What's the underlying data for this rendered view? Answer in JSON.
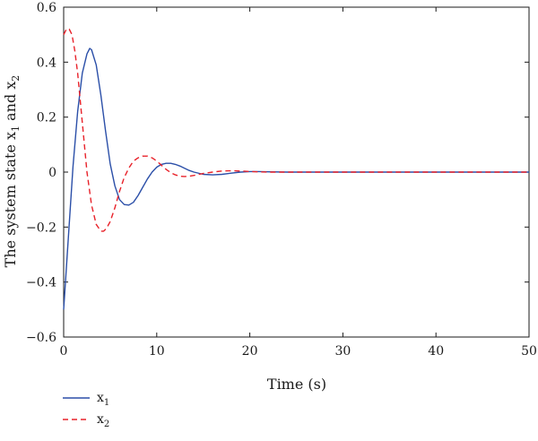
{
  "chart_data": {
    "type": "line",
    "xlabel": "Time (s)",
    "ylabel": "The system state x1 and x2",
    "ylabel_parts": {
      "prefix": "The system state x",
      "sub1": "1",
      "mid": " and x",
      "sub2": "2"
    },
    "xlim": [
      0,
      50
    ],
    "ylim": [
      -0.6,
      0.6
    ],
    "xticks": [
      0,
      10,
      20,
      30,
      40,
      50
    ],
    "xtick_labels": [
      "0",
      "10",
      "20",
      "30",
      "40",
      "50"
    ],
    "yticks": [
      -0.6,
      -0.4,
      -0.2,
      0,
      0.2,
      0.4,
      0.6
    ],
    "ytick_labels": [
      "−0.6",
      "−0.4",
      "−0.2",
      "0",
      "0.2",
      "0.4",
      "0.6"
    ],
    "grid": false,
    "legend_placement": "bottom-left, below plot",
    "series": [
      {
        "name": "x1",
        "name_base": "x",
        "name_sub": "1",
        "color": "#2b4fa8",
        "style": "solid",
        "x": [
          0,
          0.5,
          1,
          1.5,
          2,
          2.5,
          2.8,
          3,
          3.5,
          4,
          4.5,
          5,
          5.5,
          6,
          6.5,
          7,
          7.5,
          8,
          8.5,
          9,
          9.5,
          10,
          10.5,
          11,
          11.5,
          12,
          12.5,
          13,
          13.5,
          14,
          15,
          16,
          17,
          18,
          19,
          20,
          21,
          22,
          24,
          26,
          30,
          35,
          40,
          45,
          50
        ],
        "y": [
          -0.5,
          -0.24,
          0.02,
          0.22,
          0.36,
          0.43,
          0.45,
          0.445,
          0.39,
          0.28,
          0.15,
          0.03,
          -0.05,
          -0.1,
          -0.118,
          -0.12,
          -0.11,
          -0.085,
          -0.055,
          -0.025,
          0,
          0.018,
          0.028,
          0.032,
          0.032,
          0.028,
          0.022,
          0.014,
          0.006,
          0,
          -0.008,
          -0.01,
          -0.008,
          -0.004,
          0,
          0.002,
          0.002,
          0.001,
          0,
          0,
          0,
          0,
          0,
          0,
          0
        ]
      },
      {
        "name": "x2",
        "name_base": "x",
        "name_sub": "2",
        "color": "#e8222a",
        "style": "dashed",
        "x": [
          0,
          0.3,
          0.6,
          0.9,
          1.2,
          1.5,
          2,
          2.5,
          3,
          3.5,
          4,
          4.3,
          4.6,
          5,
          5.5,
          6,
          6.5,
          7,
          7.5,
          8,
          8.5,
          9,
          9.5,
          10,
          10.5,
          11,
          11.5,
          12,
          12.5,
          13,
          13.5,
          14,
          15,
          16,
          17,
          18,
          19,
          20,
          21,
          22,
          24,
          26,
          30,
          35,
          40,
          45,
          50
        ],
        "y": [
          0.5,
          0.52,
          0.52,
          0.5,
          0.44,
          0.36,
          0.18,
          0,
          -0.12,
          -0.19,
          -0.215,
          -0.215,
          -0.205,
          -0.18,
          -0.13,
          -0.07,
          -0.02,
          0.015,
          0.04,
          0.052,
          0.058,
          0.058,
          0.052,
          0.04,
          0.025,
          0.01,
          -0.002,
          -0.01,
          -0.015,
          -0.016,
          -0.015,
          -0.012,
          -0.005,
          0,
          0.004,
          0.005,
          0.004,
          0.002,
          0.001,
          0,
          0,
          0,
          0,
          0,
          0,
          0,
          0
        ]
      }
    ]
  }
}
